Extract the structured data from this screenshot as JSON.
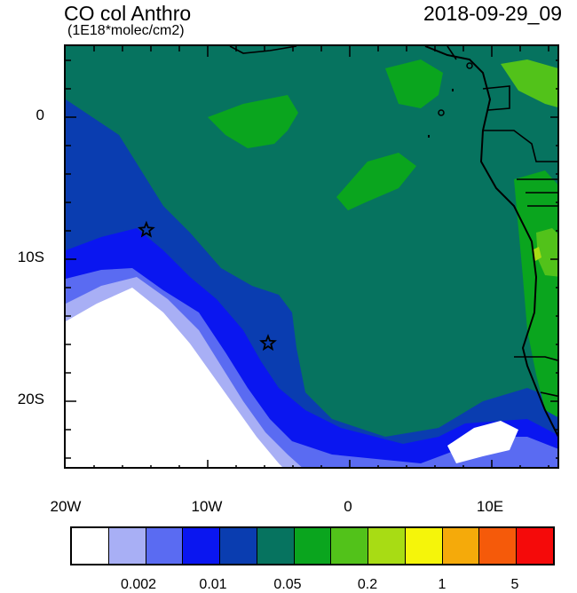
{
  "title": "CO col Anthro",
  "subtitle": "(1E18*molec/cm2)",
  "timestamp": "2018-09-29_09",
  "y_axis": {
    "ticks": [
      "0",
      "10S",
      "20S"
    ]
  },
  "x_axis": {
    "ticks": [
      "20W",
      "10W",
      "0",
      "10E"
    ]
  },
  "legend": {
    "labels": [
      "0.002",
      "0.01",
      "0.05",
      "0.2",
      "1",
      "5"
    ],
    "colors": [
      "#ffffff",
      "#a8aff5",
      "#5a6bf2",
      "#0a16f0",
      "#0a3db0",
      "#06735f",
      "#0aa51e",
      "#52c21a",
      "#a8dc14",
      "#f5f50a",
      "#f5aa0a",
      "#f55a0a",
      "#f50a0a"
    ]
  },
  "map": {
    "background_color": "#06735f",
    "markers": [
      {
        "name": "star-marker",
        "lon": -14.3,
        "lat": -8.0
      },
      {
        "name": "star-marker",
        "lon": -5.7,
        "lat": -16.0
      }
    ]
  }
}
